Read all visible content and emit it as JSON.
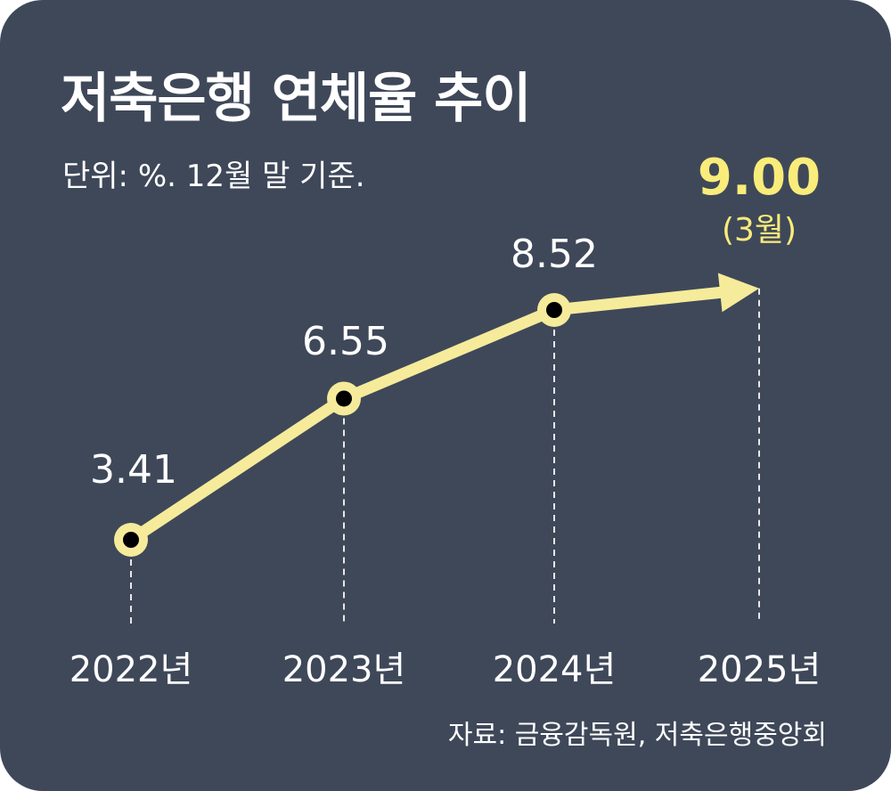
{
  "title": "저축은행 연체율 추이",
  "subtitle": "단위: %. 12월 말 기준.",
  "source": "자료: 금융감독원, 저축은행중앙회",
  "colors": {
    "background": "#3f4859",
    "line": "#f5eb9a",
    "highlight": "#f9ec7a",
    "text": "#ffffff",
    "marker": "#000000"
  },
  "chart_data": {
    "type": "line",
    "categories": [
      "2022년",
      "2023년",
      "2024년",
      "2025년"
    ],
    "values": [
      3.41,
      6.55,
      8.52,
      9.0
    ],
    "data_labels": [
      "3.41",
      "6.55",
      "8.52",
      "9.00"
    ],
    "annotation": "(3월)",
    "last_point_arrow": true,
    "grid": false,
    "title": "저축은행 연체율 추이",
    "ylabel": "",
    "xlabel": ""
  }
}
